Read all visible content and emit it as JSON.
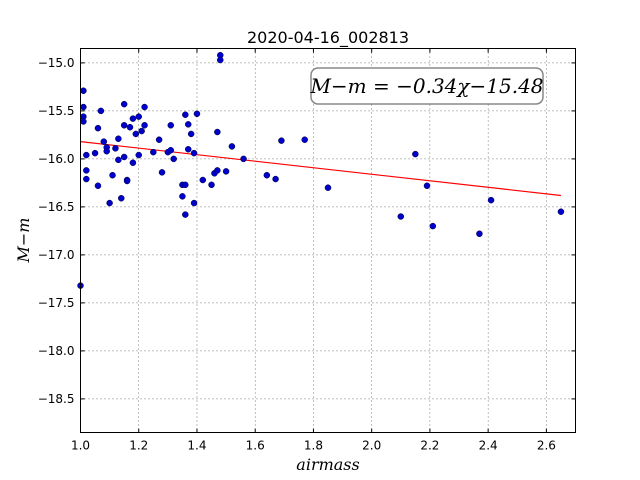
{
  "chart_data": {
    "type": "scatter",
    "title": "2020-04-16_002813",
    "xlabel": "airmass",
    "ylabel": "M−m",
    "xlim": [
      1.0,
      2.7
    ],
    "ylim": [
      -18.85,
      -14.85
    ],
    "xticks": [
      1.0,
      1.2,
      1.4,
      1.6,
      1.8,
      2.0,
      2.2,
      2.4,
      2.6
    ],
    "xtick_labels": [
      "1.0",
      "1.2",
      "1.4",
      "1.6",
      "1.8",
      "2.0",
      "2.2",
      "2.4",
      "2.6"
    ],
    "yticks": [
      -15.0,
      -15.5,
      -16.0,
      -16.5,
      -17.0,
      -17.5,
      -18.0,
      -18.5
    ],
    "ytick_labels": [
      "−15.0",
      "−15.5",
      "−16.0",
      "−16.5",
      "−17.0",
      "−17.5",
      "−18.0",
      "−18.5"
    ],
    "grid": true,
    "annotation": "M−m = −0.34χ−15.48",
    "fit": {
      "slope": -0.34,
      "intercept": -15.48,
      "x_range": [
        1.0,
        2.65
      ],
      "color": "#ff0000"
    },
    "point_color": "#0000cc",
    "points": [
      [
        1.0,
        -17.32
      ],
      [
        1.01,
        -15.29
      ],
      [
        1.01,
        -15.46
      ],
      [
        1.01,
        -15.56
      ],
      [
        1.01,
        -15.61
      ],
      [
        1.02,
        -15.96
      ],
      [
        1.02,
        -16.12
      ],
      [
        1.02,
        -16.21
      ],
      [
        1.05,
        -15.94
      ],
      [
        1.06,
        -15.68
      ],
      [
        1.06,
        -16.28
      ],
      [
        1.07,
        -15.5
      ],
      [
        1.08,
        -15.82
      ],
      [
        1.09,
        -15.88
      ],
      [
        1.09,
        -15.92
      ],
      [
        1.1,
        -16.46
      ],
      [
        1.11,
        -16.17
      ],
      [
        1.12,
        -15.89
      ],
      [
        1.13,
        -15.79
      ],
      [
        1.13,
        -16.01
      ],
      [
        1.14,
        -16.41
      ],
      [
        1.15,
        -15.43
      ],
      [
        1.15,
        -15.65
      ],
      [
        1.15,
        -15.98
      ],
      [
        1.16,
        -16.22
      ],
      [
        1.16,
        -16.23
      ],
      [
        1.17,
        -15.67
      ],
      [
        1.18,
        -16.04
      ],
      [
        1.18,
        -15.58
      ],
      [
        1.19,
        -15.74
      ],
      [
        1.2,
        -15.56
      ],
      [
        1.2,
        -15.96
      ],
      [
        1.21,
        -15.71
      ],
      [
        1.22,
        -15.46
      ],
      [
        1.22,
        -15.65
      ],
      [
        1.25,
        -15.93
      ],
      [
        1.27,
        -15.8
      ],
      [
        1.28,
        -16.14
      ],
      [
        1.3,
        -15.93
      ],
      [
        1.31,
        -15.91
      ],
      [
        1.31,
        -15.65
      ],
      [
        1.32,
        -16.0
      ],
      [
        1.35,
        -16.27
      ],
      [
        1.35,
        -16.39
      ],
      [
        1.36,
        -16.58
      ],
      [
        1.36,
        -15.54
      ],
      [
        1.36,
        -16.27
      ],
      [
        1.37,
        -15.9
      ],
      [
        1.37,
        -15.64
      ],
      [
        1.38,
        -15.74
      ],
      [
        1.39,
        -15.94
      ],
      [
        1.39,
        -16.46
      ],
      [
        1.4,
        -15.53
      ],
      [
        1.42,
        -16.22
      ],
      [
        1.45,
        -16.27
      ],
      [
        1.46,
        -16.15
      ],
      [
        1.47,
        -15.72
      ],
      [
        1.47,
        -16.12
      ],
      [
        1.48,
        -14.92
      ],
      [
        1.48,
        -14.97
      ],
      [
        1.5,
        -16.13
      ],
      [
        1.52,
        -15.87
      ],
      [
        1.56,
        -16.0
      ],
      [
        1.64,
        -16.17
      ],
      [
        1.67,
        -16.21
      ],
      [
        1.69,
        -15.81
      ],
      [
        1.77,
        -15.8
      ],
      [
        1.85,
        -16.3
      ],
      [
        2.1,
        -16.6
      ],
      [
        2.15,
        -15.95
      ],
      [
        2.19,
        -16.28
      ],
      [
        2.21,
        -16.7
      ],
      [
        2.37,
        -16.78
      ],
      [
        2.41,
        -16.43
      ],
      [
        2.65,
        -16.55
      ]
    ]
  }
}
